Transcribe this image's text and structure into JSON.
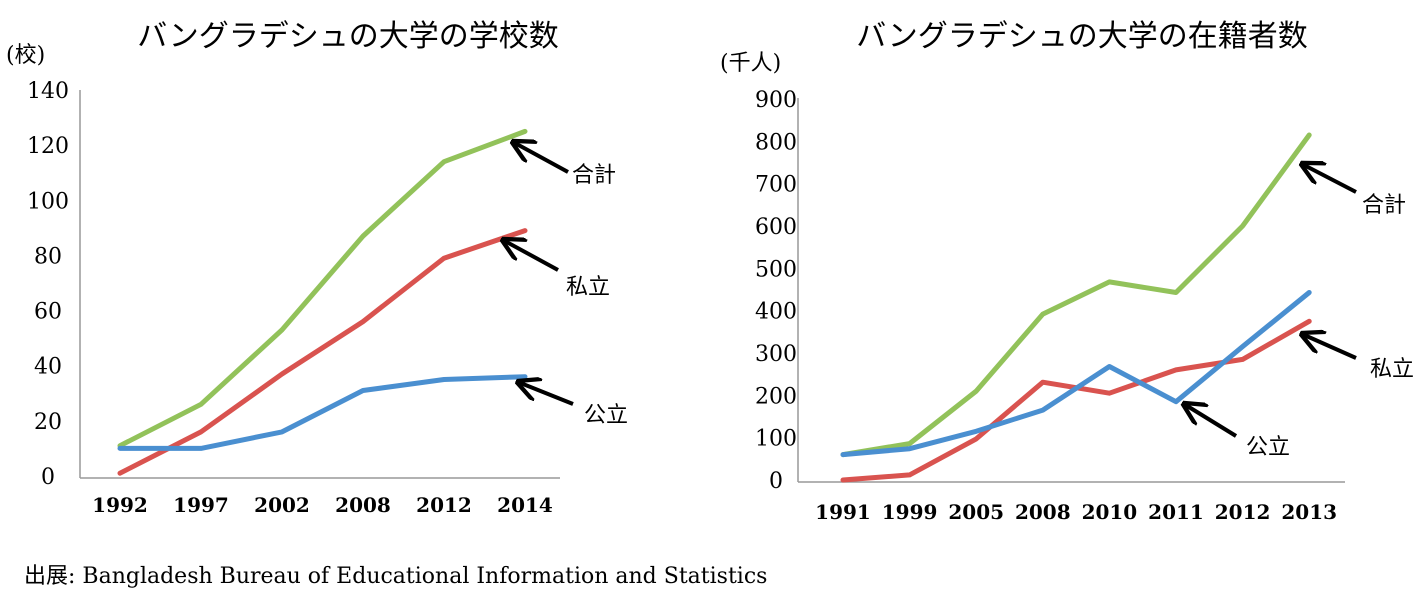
{
  "chart_data": [
    {
      "type": "line",
      "title": "バングラデシュの大学の学校数",
      "unit": "(校)",
      "categories": [
        "1992",
        "1997",
        "2002",
        "2008",
        "2012",
        "2014"
      ],
      "ylim": [
        0,
        140
      ],
      "yticks": [
        "0",
        "20",
        "40",
        "60",
        "80",
        "100",
        "120",
        "140"
      ],
      "series": [
        {
          "name": "合計",
          "color": "#92c25a",
          "values": [
            11,
            26,
            53,
            87,
            114,
            125
          ]
        },
        {
          "name": "私立",
          "color": "#d9534f",
          "values": [
            1,
            16,
            37,
            56,
            79,
            89
          ]
        },
        {
          "name": "公立",
          "color": "#4a8fd0",
          "values": [
            10,
            10,
            16,
            31,
            35,
            36
          ]
        }
      ]
    },
    {
      "type": "line",
      "title": "バングラデシュの大学の在籍者数",
      "unit": "(千人)",
      "categories": [
        "1991",
        "1999",
        "2005",
        "2008",
        "2010",
        "2011",
        "2012",
        "2013"
      ],
      "ylim": [
        0,
        900
      ],
      "yticks": [
        "0",
        "100",
        "200",
        "300",
        "400",
        "500",
        "600",
        "700",
        "800",
        "900"
      ],
      "series": [
        {
          "name": "合計",
          "color": "#92c25a",
          "values": [
            60,
            86,
            210,
            392,
            468,
            443,
            600,
            815
          ]
        },
        {
          "name": "私立",
          "color": "#d9534f",
          "values": [
            0,
            12,
            97,
            231,
            205,
            260,
            285,
            375
          ]
        },
        {
          "name": "公立",
          "color": "#4a8fd0",
          "values": [
            60,
            74,
            115,
            165,
            268,
            185,
            315,
            443
          ]
        }
      ]
    }
  ],
  "source": "出展: Bangladesh Bureau of Educational Information and Statistics"
}
